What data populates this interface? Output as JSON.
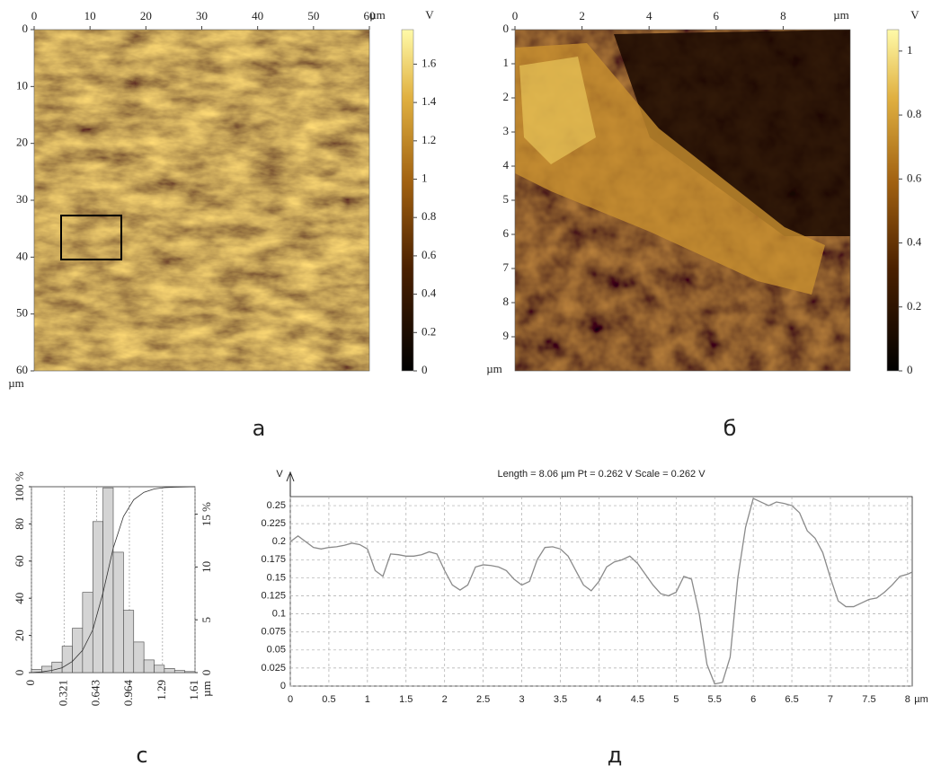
{
  "chart_data": [
    {
      "type": "image",
      "panel_label": "а",
      "x_label": "µm",
      "y_label": "µm",
      "xlim": [
        0,
        60
      ],
      "xticks": [
        0,
        10,
        20,
        30,
        40,
        50,
        60
      ],
      "ylim": [
        0,
        60
      ],
      "yticks": [
        0,
        10,
        20,
        30,
        40,
        50,
        60
      ],
      "colorbar": {
        "label": "V",
        "lim": [
          0,
          1.78
        ],
        "ticks": [
          0,
          0.2,
          0.4,
          0.6,
          0.8,
          1,
          1.2,
          1.4,
          1.6
        ]
      }
    },
    {
      "type": "image",
      "panel_label": "б",
      "x_label": "µm",
      "y_label": "µm",
      "xlim": [
        0,
        10
      ],
      "xticks": [
        0,
        2,
        4,
        6,
        8
      ],
      "ylim": [
        0,
        10
      ],
      "yticks": [
        0,
        1,
        2,
        3,
        4,
        5,
        6,
        7,
        8,
        9
      ],
      "colorbar": {
        "label": "V",
        "lim": [
          0,
          1.067
        ],
        "ticks": [
          0,
          0.2,
          0.4,
          0.6,
          0.8,
          1
        ]
      }
    },
    {
      "type": "histogram",
      "panel_label": "c",
      "x_label": "µm",
      "color": "#d4d4d4",
      "grid": true,
      "bins": [
        0,
        0.1006,
        0.2013,
        0.3019,
        0.4025,
        0.5031,
        0.6038,
        0.7044,
        0.805,
        0.9056,
        1.0063,
        1.1069,
        1.2075,
        1.3081,
        1.4088,
        1.5094,
        1.61
      ],
      "values": [
        0.3,
        0.6,
        1,
        2.5,
        4.2,
        7.6,
        14.3,
        17.5,
        11.4,
        5.9,
        2.9,
        1.2,
        0.7,
        0.4,
        0.2,
        0.1
      ],
      "axis": "y2",
      "cumulative": [
        0,
        0.4,
        1.2,
        2.6,
        6,
        12,
        23,
        43,
        67,
        84,
        93,
        97,
        98.8,
        99.5,
        99.8,
        99.9,
        100
      ],
      "xlim": [
        0,
        1.61
      ],
      "xticks": [
        0,
        0.321,
        0.643,
        0.964,
        1.29,
        1.61
      ],
      "ylim": [
        0,
        100
      ],
      "yticks": [
        0,
        20,
        40,
        60,
        80,
        {
          "value": 100,
          "label": "100 %"
        }
      ],
      "y2lim": [
        0,
        17.6
      ],
      "y2ticks": [
        0,
        5,
        10,
        {
          "value": 15,
          "label": "15 %"
        }
      ]
    },
    {
      "type": "line",
      "panel_label": "д",
      "title": "Length = 8.06 µm  Pt = 0.262 V  Scale = 0.262 V",
      "x_label": "µm",
      "y_label": "V",
      "color": "#8a8a8a",
      "grid": true,
      "x": [
        0,
        0.1,
        0.2,
        0.3,
        0.4,
        0.5,
        0.6,
        0.7,
        0.8,
        0.9,
        1,
        1.1,
        1.2,
        1.3,
        1.4,
        1.5,
        1.6,
        1.7,
        1.8,
        1.9,
        2,
        2.1,
        2.2,
        2.3,
        2.4,
        2.5,
        2.6,
        2.7,
        2.8,
        2.9,
        3,
        3.1,
        3.2,
        3.3,
        3.4,
        3.5,
        3.6,
        3.7,
        3.8,
        3.9,
        4,
        4.1,
        4.2,
        4.3,
        4.4,
        4.5,
        4.6,
        4.7,
        4.8,
        4.9,
        5,
        5.1,
        5.2,
        5.3,
        5.4,
        5.5,
        5.6,
        5.7,
        5.8,
        5.9,
        6,
        6.1,
        6.2,
        6.3,
        6.4,
        6.5,
        6.6,
        6.7,
        6.8,
        6.9,
        7,
        7.1,
        7.2,
        7.3,
        7.4,
        7.5,
        7.6,
        7.7,
        7.8,
        7.9,
        8,
        8.06
      ],
      "values": [
        0.2,
        0.208,
        0.2,
        0.192,
        0.19,
        0.192,
        0.193,
        0.195,
        0.198,
        0.196,
        0.19,
        0.16,
        0.152,
        0.183,
        0.182,
        0.18,
        0.18,
        0.182,
        0.186,
        0.183,
        0.16,
        0.14,
        0.133,
        0.14,
        0.165,
        0.168,
        0.167,
        0.165,
        0.16,
        0.148,
        0.14,
        0.145,
        0.175,
        0.192,
        0.193,
        0.19,
        0.18,
        0.16,
        0.14,
        0.132,
        0.145,
        0.165,
        0.172,
        0.175,
        0.18,
        0.17,
        0.155,
        0.14,
        0.128,
        0.125,
        0.13,
        0.152,
        0.148,
        0.1,
        0.03,
        0.003,
        0.005,
        0.04,
        0.15,
        0.22,
        0.26,
        0.255,
        0.25,
        0.255,
        0.253,
        0.25,
        0.24,
        0.215,
        0.205,
        0.185,
        0.15,
        0.118,
        0.11,
        0.11,
        0.115,
        0.12,
        0.122,
        0.13,
        0.14,
        0.152,
        0.155,
        0.158
      ],
      "xlim": [
        0,
        8.06
      ],
      "xticks": [
        0,
        0.5,
        1,
        1.5,
        2,
        2.5,
        3,
        3.5,
        4,
        4.5,
        5,
        5.5,
        6,
        6.5,
        7,
        7.5,
        8
      ],
      "ylim": [
        0,
        0.2625
      ],
      "yticks": [
        0,
        0.025,
        0.05,
        0.075,
        0.1,
        0.125,
        0.15,
        0.175,
        0.2,
        0.225,
        0.25
      ]
    }
  ]
}
